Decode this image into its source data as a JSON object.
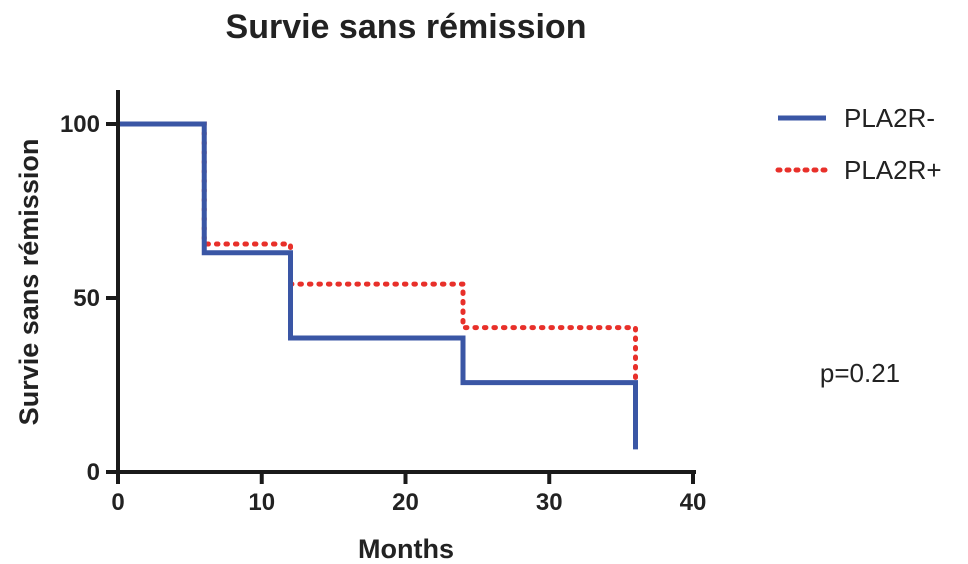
{
  "chart_data": {
    "type": "line",
    "title": "Survie sans rémission",
    "xlabel": "Months",
    "ylabel": "Survie sans rémission",
    "xlim": [
      0,
      40
    ],
    "ylim": [
      0,
      100
    ],
    "xticks": [
      0,
      10,
      20,
      30,
      40
    ],
    "yticks": [
      0,
      50,
      100
    ],
    "grid": false,
    "legend_position": "top-right",
    "annotation": "p=0.21",
    "series": [
      {
        "name": "PLA2R-",
        "style": "solid",
        "color": "#3a56a5",
        "x": [
          0,
          6,
          12,
          24,
          36
        ],
        "y": [
          100,
          63,
          38.5,
          25.7,
          6.5
        ]
      },
      {
        "name": "PLA2R+",
        "style": "dotted",
        "color": "#e8302a",
        "x": [
          0,
          6,
          12,
          24,
          36
        ],
        "y": [
          100,
          65.5,
          54,
          41.5,
          26
        ]
      }
    ]
  }
}
